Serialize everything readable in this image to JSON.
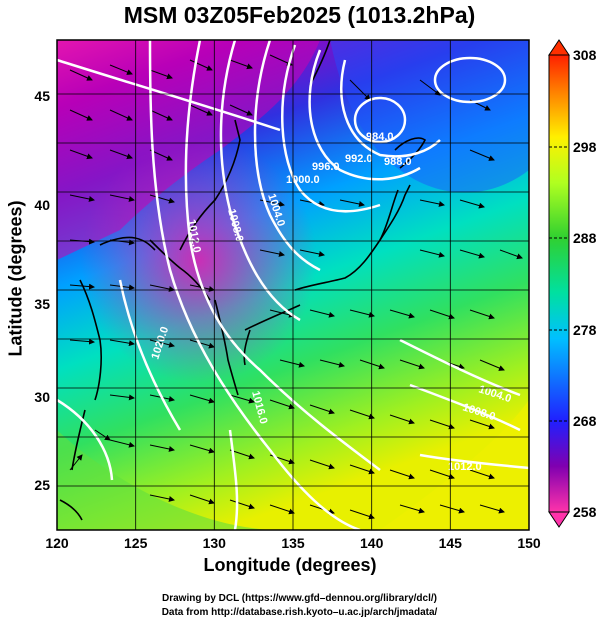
{
  "title": "MSM 03Z05Feb2025 (1013.2hPa)",
  "xlabel": "Longitude (degrees)",
  "ylabel": "Latitude  (degrees)",
  "x_ticks": [
    "120",
    "125",
    "130",
    "135",
    "140",
    "145",
    "150"
  ],
  "y_ticks": [
    "25",
    "30",
    "35",
    "40",
    "45"
  ],
  "colorbar": {
    "min": 258,
    "max": 308,
    "labels": [
      "308",
      "298",
      "288",
      "278",
      "268",
      "258"
    ],
    "colors": [
      "#ff33aa",
      "#8000b0",
      "#2020ff",
      "#00c0ff",
      "#00e0a0",
      "#30d030",
      "#b0ff20",
      "#fff000",
      "#ff8000",
      "#ff2000"
    ]
  },
  "isobars": [
    {
      "label": "984.0"
    },
    {
      "label": "988.0"
    },
    {
      "label": "992.0"
    },
    {
      "label": "996.0"
    },
    {
      "label": "1000.0"
    },
    {
      "label": "1004.0"
    },
    {
      "label": "1008.0"
    },
    {
      "label": "1012.0"
    },
    {
      "label": "1020.0"
    },
    {
      "label": "1016.0"
    },
    {
      "label": "1004.0"
    },
    {
      "label": "1008.0"
    },
    {
      "label": "1012.0"
    }
  ],
  "credits": {
    "line1": "Drawing by DCL (https://www.gfd–dennou.org/library/dcl/)",
    "line2": "Data from http://database.rish.kyoto–u.ac.jp/arch/jmadata/"
  }
}
